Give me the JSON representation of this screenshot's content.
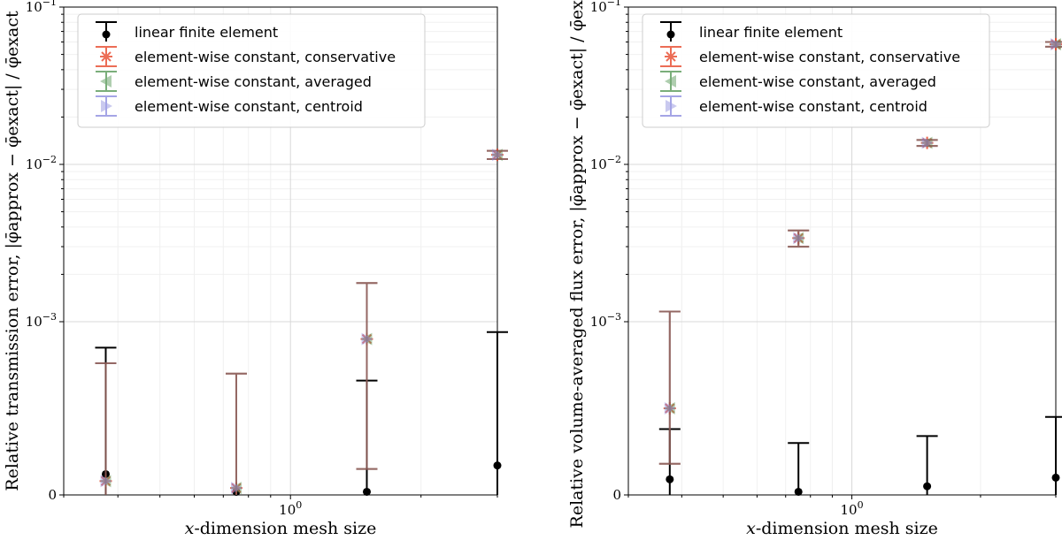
{
  "chart_data": [
    {
      "type": "scatter",
      "panel": "left",
      "title": "",
      "xlabel": "x-dimension mesh size",
      "ylabel": "Relative transmission error, |φ̄approx − φ̄exact| / φ̄exact",
      "xscale": "log",
      "yscale": "symlog",
      "xlim": [
        0.3,
        3.0
      ],
      "ylim": [
        0,
        0.1
      ],
      "yticks": [
        "0",
        "10⁻³",
        "10⁻²",
        "10⁻¹"
      ],
      "xticks": [
        "10⁰"
      ],
      "grid": true,
      "legend_position": "top-left",
      "legend": [
        "linear finite element",
        "element-wise constant, conservative",
        "element-wise constant, averaged",
        "element-wise constant, centroid"
      ],
      "x": [
        0.375,
        0.75,
        1.5,
        3.0
      ],
      "series": [
        {
          "name": "linear finite element",
          "values": [
            0.00012,
            1.8e-05,
            1.8e-05,
            0.00017
          ],
          "err_low": [
            0,
            0,
            0,
            0
          ],
          "err_high": [
            0.00085,
            0.0,
            0.00066,
            0.00094
          ]
        },
        {
          "name": "element-wise constant, conservative",
          "values": [
            8e-05,
            4e-05,
            0.0009,
            0.0115
          ],
          "err_low": [
            0,
            0,
            0.00015,
            0.0108
          ],
          "err_high": [
            0.00076,
            0.0007,
            0.00176,
            0.0122
          ]
        },
        {
          "name": "element-wise constant, averaged",
          "values": [
            8e-05,
            4e-05,
            0.0009,
            0.0115
          ],
          "err_low": [
            0,
            0,
            0.00015,
            0.0108
          ],
          "err_high": [
            0.00076,
            0.0007,
            0.00176,
            0.0122
          ]
        },
        {
          "name": "element-wise constant, centroid",
          "values": [
            8e-05,
            4e-05,
            0.0009,
            0.0115
          ],
          "err_low": [
            0,
            0,
            0.00015,
            0.0108
          ],
          "err_high": [
            0.00076,
            0.0007,
            0.00176,
            0.0122
          ]
        }
      ]
    },
    {
      "type": "scatter",
      "panel": "right",
      "title": "",
      "xlabel": "x-dimension mesh size",
      "ylabel": "Relative volume-averaged flux error, |φ̄approx − φ̄exact| / φ̄exact",
      "xscale": "log",
      "yscale": "symlog",
      "xlim": [
        0.3,
        3.0
      ],
      "ylim": [
        0,
        0.1
      ],
      "yticks": [
        "0",
        "10⁻³",
        "10⁻²",
        "10⁻¹"
      ],
      "xticks": [
        "10⁰"
      ],
      "grid": true,
      "legend_position": "top-left",
      "legend": [
        "linear finite element",
        "element-wise constant, conservative",
        "element-wise constant, averaged",
        "element-wise constant, centroid"
      ],
      "x": [
        0.375,
        0.75,
        1.5,
        3.0
      ],
      "series": [
        {
          "name": "linear finite element",
          "values": [
            9e-05,
            1.8e-05,
            5e-05,
            0.0001
          ],
          "err_low": [
            0,
            0,
            0,
            0
          ],
          "err_high": [
            0.00038,
            0.0003,
            0.00034,
            0.00045
          ]
        },
        {
          "name": "element-wise constant, conservative",
          "values": [
            0.0005,
            0.0034,
            0.0137,
            0.058
          ],
          "err_low": [
            0.00018,
            0.003,
            0.0131,
            0.056
          ],
          "err_high": [
            0.00116,
            0.0038,
            0.0143,
            0.06
          ]
        },
        {
          "name": "element-wise constant, averaged",
          "values": [
            0.0005,
            0.0034,
            0.0137,
            0.058
          ],
          "err_low": [
            0.00018,
            0.003,
            0.0131,
            0.056
          ],
          "err_high": [
            0.00116,
            0.0038,
            0.0143,
            0.06
          ]
        },
        {
          "name": "element-wise constant, centroid",
          "values": [
            0.0005,
            0.0034,
            0.0137,
            0.058
          ],
          "err_low": [
            0.00018,
            0.003,
            0.0131,
            0.056
          ],
          "err_high": [
            0.00116,
            0.0038,
            0.0143,
            0.06
          ]
        }
      ]
    }
  ],
  "colors": {
    "linear": "#000000",
    "conservative": "#e8492d",
    "averaged": "#5a9a5a",
    "centroid": "#8f8fe0",
    "errorbar_const": "#8a5a55",
    "grid_major": "#d8d8d8",
    "grid_minor": "#f0f0f0"
  },
  "symbols": {
    "linear_marker": "circle",
    "conservative_marker": "asterisk",
    "averaged_marker": "triangle-left",
    "centroid_marker": "triangle-right"
  }
}
